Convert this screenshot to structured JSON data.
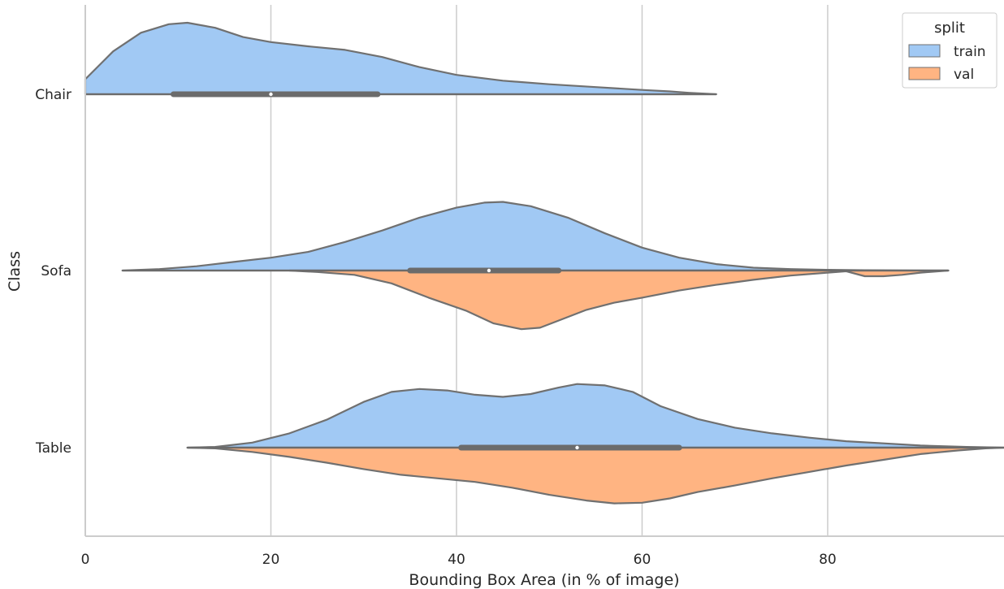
{
  "chart_data": {
    "type": "violin",
    "split": true,
    "orientation": "horizontal",
    "xlabel": "Bounding Box Area (in % of image)",
    "ylabel": "Class",
    "xlim": [
      0,
      99
    ],
    "xticks": [
      0,
      20,
      40,
      60,
      80
    ],
    "grid": "vertical",
    "categories": [
      "Chair",
      "Sofa",
      "Table"
    ],
    "legend": {
      "title": "split",
      "position": "top-right",
      "entries": [
        {
          "name": "train",
          "color": "#a1c9f4"
        },
        {
          "name": "val",
          "color": "#ffb482"
        }
      ]
    },
    "colors": {
      "train": "#a1c9f4",
      "val": "#ffb482",
      "outline": "#707070",
      "box": "#6b6b6b"
    },
    "series": [
      {
        "category": "Chair",
        "split": "train",
        "range": [
          0,
          68
        ],
        "density": [
          [
            0,
            0.21
          ],
          [
            3,
            0.6
          ],
          [
            6,
            0.86
          ],
          [
            9,
            0.98
          ],
          [
            11,
            1.0
          ],
          [
            14,
            0.93
          ],
          [
            17,
            0.8
          ],
          [
            20,
            0.73
          ],
          [
            24,
            0.67
          ],
          [
            28,
            0.62
          ],
          [
            32,
            0.52
          ],
          [
            36,
            0.38
          ],
          [
            40,
            0.27
          ],
          [
            45,
            0.19
          ],
          [
            50,
            0.14
          ],
          [
            55,
            0.1
          ],
          [
            60,
            0.06
          ],
          [
            63,
            0.04
          ],
          [
            65,
            0.02
          ],
          [
            68,
            0
          ]
        ]
      },
      {
        "category": "Sofa",
        "split": "train",
        "range": [
          4,
          93
        ],
        "density": [
          [
            4,
            0
          ],
          [
            8,
            0.02
          ],
          [
            12,
            0.06
          ],
          [
            16,
            0.12
          ],
          [
            20,
            0.18
          ],
          [
            24,
            0.26
          ],
          [
            28,
            0.4
          ],
          [
            32,
            0.56
          ],
          [
            36,
            0.74
          ],
          [
            40,
            0.88
          ],
          [
            43,
            0.95
          ],
          [
            45,
            0.96
          ],
          [
            48,
            0.9
          ],
          [
            52,
            0.74
          ],
          [
            56,
            0.52
          ],
          [
            60,
            0.32
          ],
          [
            64,
            0.18
          ],
          [
            68,
            0.09
          ],
          [
            72,
            0.04
          ],
          [
            76,
            0.02
          ],
          [
            80,
            0.01
          ],
          [
            84,
            0.005
          ],
          [
            88,
            0.002
          ],
          [
            93,
            0
          ]
        ]
      },
      {
        "category": "Sofa",
        "split": "val",
        "range": [
          22,
          93
        ],
        "density": [
          [
            22,
            0
          ],
          [
            25,
            0.02
          ],
          [
            29,
            0.06
          ],
          [
            33,
            0.18
          ],
          [
            37,
            0.38
          ],
          [
            41,
            0.56
          ],
          [
            44,
            0.74
          ],
          [
            47,
            0.82
          ],
          [
            49,
            0.8
          ],
          [
            51,
            0.7
          ],
          [
            54,
            0.55
          ],
          [
            57,
            0.45
          ],
          [
            60,
            0.38
          ],
          [
            64,
            0.28
          ],
          [
            68,
            0.2
          ],
          [
            72,
            0.13
          ],
          [
            76,
            0.07
          ],
          [
            80,
            0.03
          ],
          [
            82,
            0.01
          ],
          [
            84,
            0.08
          ],
          [
            86,
            0.08
          ],
          [
            88,
            0.06
          ],
          [
            90,
            0.03
          ],
          [
            93,
            0
          ]
        ]
      },
      {
        "category": "Table",
        "split": "train",
        "range": [
          11,
          99
        ],
        "density": [
          [
            11,
            0
          ],
          [
            14,
            0.01
          ],
          [
            18,
            0.07
          ],
          [
            22,
            0.2
          ],
          [
            26,
            0.39
          ],
          [
            30,
            0.64
          ],
          [
            33,
            0.78
          ],
          [
            36,
            0.82
          ],
          [
            39,
            0.8
          ],
          [
            42,
            0.74
          ],
          [
            45,
            0.71
          ],
          [
            48,
            0.75
          ],
          [
            51,
            0.84
          ],
          [
            53,
            0.89
          ],
          [
            56,
            0.87
          ],
          [
            59,
            0.78
          ],
          [
            62,
            0.58
          ],
          [
            66,
            0.4
          ],
          [
            70,
            0.28
          ],
          [
            74,
            0.2
          ],
          [
            78,
            0.14
          ],
          [
            82,
            0.09
          ],
          [
            86,
            0.06
          ],
          [
            90,
            0.03
          ],
          [
            95,
            0.01
          ],
          [
            99,
            0
          ]
        ]
      },
      {
        "category": "Table",
        "split": "val",
        "range": [
          11,
          99
        ],
        "density": [
          [
            11,
            0
          ],
          [
            14,
            0.01
          ],
          [
            18,
            0.06
          ],
          [
            22,
            0.13
          ],
          [
            26,
            0.21
          ],
          [
            30,
            0.3
          ],
          [
            34,
            0.38
          ],
          [
            38,
            0.43
          ],
          [
            42,
            0.48
          ],
          [
            46,
            0.56
          ],
          [
            50,
            0.66
          ],
          [
            54,
            0.74
          ],
          [
            57,
            0.78
          ],
          [
            60,
            0.77
          ],
          [
            63,
            0.71
          ],
          [
            66,
            0.62
          ],
          [
            70,
            0.53
          ],
          [
            74,
            0.43
          ],
          [
            78,
            0.34
          ],
          [
            82,
            0.25
          ],
          [
            86,
            0.17
          ],
          [
            90,
            0.09
          ],
          [
            94,
            0.04
          ],
          [
            97,
            0.01
          ],
          [
            99,
            0
          ]
        ]
      }
    ],
    "boxes": [
      {
        "category": "Chair",
        "q1": 9.5,
        "median": 20,
        "q3": 31.5,
        "whisker_low": 0,
        "whisker_high": 68
      },
      {
        "category": "Sofa",
        "q1": 35,
        "median": 43.5,
        "q3": 51,
        "whisker_low": 4,
        "whisker_high": 93
      },
      {
        "category": "Table",
        "q1": 40.5,
        "median": 53,
        "q3": 64,
        "whisker_low": 11,
        "whisker_high": 99
      }
    ]
  }
}
